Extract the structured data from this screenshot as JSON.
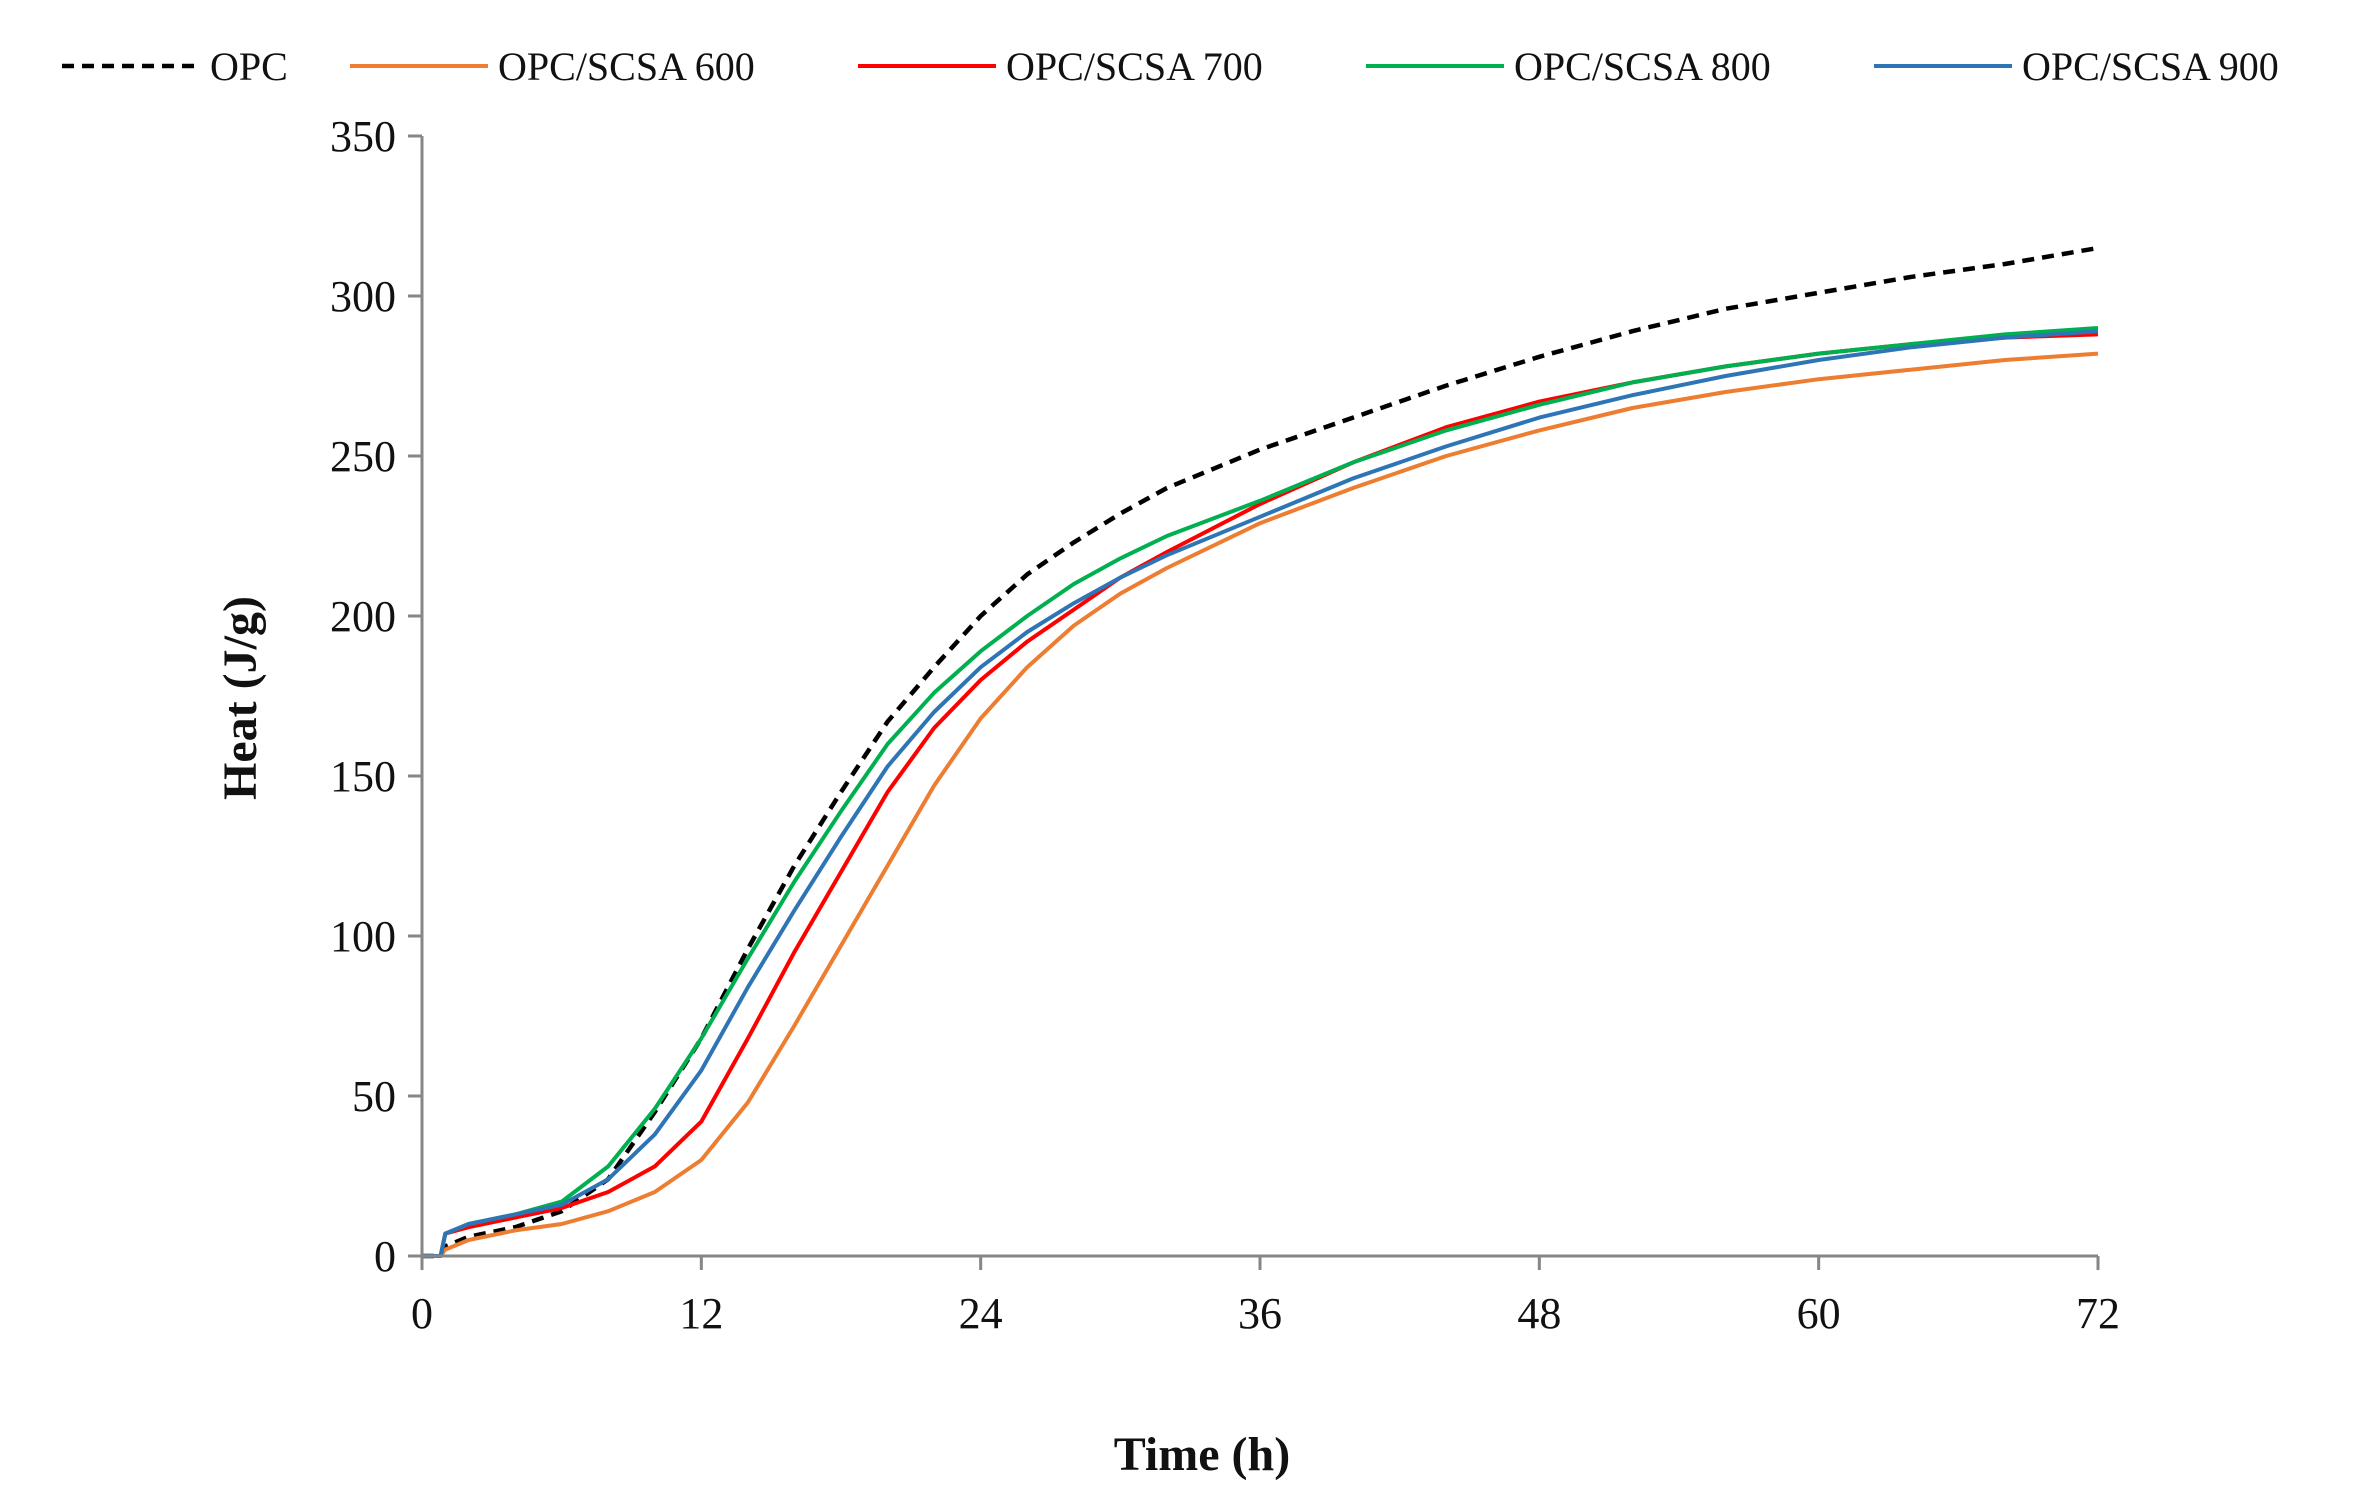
{
  "chart_data": {
    "type": "line",
    "title": "",
    "xlabel": "Time (h)",
    "ylabel": "Heat (J/g)",
    "xlim": [
      0,
      72
    ],
    "ylim": [
      0,
      350
    ],
    "xticks": [
      0,
      12,
      24,
      36,
      48,
      60,
      72
    ],
    "yticks": [
      0,
      50,
      100,
      150,
      200,
      250,
      300,
      350
    ],
    "grid": false,
    "legend": "top",
    "series": [
      {
        "name": "OPC",
        "color": "#000000",
        "dash": "dashed",
        "points": [
          [
            0,
            0
          ],
          [
            0.8,
            0
          ],
          [
            1,
            3
          ],
          [
            2,
            6
          ],
          [
            4,
            9
          ],
          [
            6,
            14
          ],
          [
            8,
            24
          ],
          [
            10,
            45
          ],
          [
            12,
            68
          ],
          [
            14,
            96
          ],
          [
            16,
            122
          ],
          [
            18,
            145
          ],
          [
            20,
            167
          ],
          [
            22,
            184
          ],
          [
            24,
            200
          ],
          [
            26,
            213
          ],
          [
            28,
            223
          ],
          [
            30,
            232
          ],
          [
            32,
            240
          ],
          [
            34,
            246
          ],
          [
            36,
            252
          ],
          [
            40,
            262
          ],
          [
            44,
            272
          ],
          [
            48,
            281
          ],
          [
            52,
            289
          ],
          [
            56,
            296
          ],
          [
            60,
            301
          ],
          [
            64,
            306
          ],
          [
            68,
            310
          ],
          [
            72,
            315
          ]
        ]
      },
      {
        "name": "OPC/SCSA 600",
        "color": "#ED7D31",
        "dash": "solid",
        "points": [
          [
            0,
            0
          ],
          [
            0.8,
            0
          ],
          [
            1,
            2
          ],
          [
            2,
            5
          ],
          [
            4,
            8
          ],
          [
            6,
            10
          ],
          [
            8,
            14
          ],
          [
            10,
            20
          ],
          [
            12,
            30
          ],
          [
            14,
            48
          ],
          [
            16,
            72
          ],
          [
            18,
            97
          ],
          [
            20,
            122
          ],
          [
            22,
            147
          ],
          [
            24,
            168
          ],
          [
            26,
            184
          ],
          [
            28,
            197
          ],
          [
            30,
            207
          ],
          [
            32,
            215
          ],
          [
            36,
            229
          ],
          [
            40,
            240
          ],
          [
            44,
            250
          ],
          [
            48,
            258
          ],
          [
            52,
            265
          ],
          [
            56,
            270
          ],
          [
            60,
            274
          ],
          [
            64,
            277
          ],
          [
            68,
            280
          ],
          [
            72,
            282
          ]
        ]
      },
      {
        "name": "OPC/SCSA 700",
        "color": "#FF0000",
        "dash": "solid",
        "points": [
          [
            0,
            0
          ],
          [
            0.8,
            0
          ],
          [
            1,
            7
          ],
          [
            2,
            9
          ],
          [
            4,
            12
          ],
          [
            6,
            15
          ],
          [
            8,
            20
          ],
          [
            10,
            28
          ],
          [
            12,
            42
          ],
          [
            14,
            68
          ],
          [
            16,
            95
          ],
          [
            18,
            120
          ],
          [
            20,
            145
          ],
          [
            22,
            165
          ],
          [
            24,
            180
          ],
          [
            26,
            192
          ],
          [
            28,
            202
          ],
          [
            30,
            212
          ],
          [
            32,
            220
          ],
          [
            36,
            235
          ],
          [
            40,
            248
          ],
          [
            44,
            259
          ],
          [
            48,
            267
          ],
          [
            52,
            273
          ],
          [
            56,
            278
          ],
          [
            60,
            282
          ],
          [
            64,
            285
          ],
          [
            68,
            287
          ],
          [
            72,
            288
          ]
        ]
      },
      {
        "name": "OPC/SCSA 800",
        "color": "#00B050",
        "dash": "solid",
        "points": [
          [
            0,
            0
          ],
          [
            0.8,
            0
          ],
          [
            1,
            7
          ],
          [
            2,
            10
          ],
          [
            4,
            13
          ],
          [
            6,
            17
          ],
          [
            8,
            28
          ],
          [
            10,
            46
          ],
          [
            12,
            68
          ],
          [
            14,
            93
          ],
          [
            16,
            117
          ],
          [
            18,
            139
          ],
          [
            20,
            160
          ],
          [
            22,
            176
          ],
          [
            24,
            189
          ],
          [
            26,
            200
          ],
          [
            28,
            210
          ],
          [
            30,
            218
          ],
          [
            32,
            225
          ],
          [
            36,
            236
          ],
          [
            40,
            248
          ],
          [
            44,
            258
          ],
          [
            48,
            266
          ],
          [
            52,
            273
          ],
          [
            56,
            278
          ],
          [
            60,
            282
          ],
          [
            64,
            285
          ],
          [
            68,
            288
          ],
          [
            72,
            290
          ]
        ]
      },
      {
        "name": "OPC/SCSA 900",
        "color": "#2E75B6",
        "dash": "solid",
        "points": [
          [
            0,
            0
          ],
          [
            0.8,
            0
          ],
          [
            1,
            7
          ],
          [
            2,
            10
          ],
          [
            4,
            13
          ],
          [
            6,
            16
          ],
          [
            8,
            24
          ],
          [
            10,
            38
          ],
          [
            12,
            58
          ],
          [
            14,
            84
          ],
          [
            16,
            108
          ],
          [
            18,
            131
          ],
          [
            20,
            153
          ],
          [
            22,
            170
          ],
          [
            24,
            184
          ],
          [
            26,
            195
          ],
          [
            28,
            204
          ],
          [
            30,
            212
          ],
          [
            32,
            219
          ],
          [
            36,
            231
          ],
          [
            40,
            243
          ],
          [
            44,
            253
          ],
          [
            48,
            262
          ],
          [
            52,
            269
          ],
          [
            56,
            275
          ],
          [
            60,
            280
          ],
          [
            64,
            284
          ],
          [
            68,
            287
          ],
          [
            72,
            289
          ]
        ]
      }
    ]
  }
}
